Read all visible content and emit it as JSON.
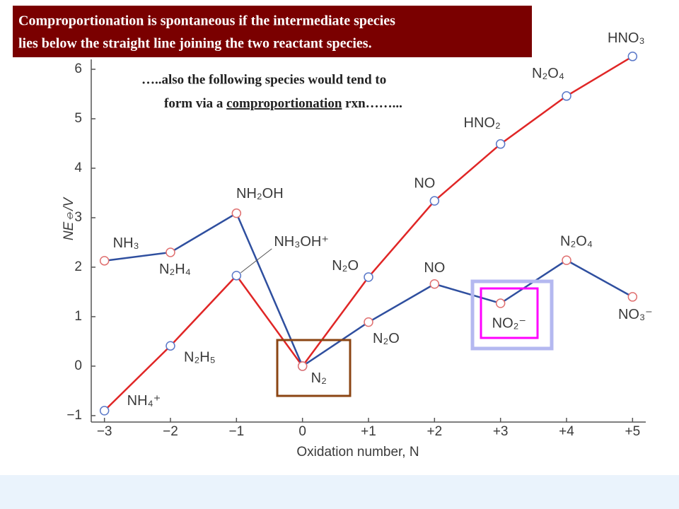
{
  "header": {
    "lines": [
      "Comproportionation is spontaneous if the intermediate species",
      "lies below the straight line joining the two reactant species."
    ]
  },
  "annotation": {
    "line1": "…..also the following species would tend to",
    "line2_before": "form via a ",
    "line2_emphasis": "comproportionation",
    "line2_after": " rxn……..."
  },
  "chart_data": {
    "type": "line",
    "x_label": "Oxidation number, N",
    "y_label": "NE⦵/V",
    "x": [
      -3,
      -2,
      -1,
      0,
      1,
      2,
      3,
      4,
      5
    ],
    "xlim": [
      -3.2,
      5.2
    ],
    "xticks": [
      {
        "value": -3,
        "label": "−3"
      },
      {
        "value": -2,
        "label": "−2"
      },
      {
        "value": -1,
        "label": "−1"
      },
      0,
      {
        "value": 1,
        "label": "+1"
      },
      {
        "value": 2,
        "label": "+2"
      },
      {
        "value": 3,
        "label": "+3"
      },
      {
        "value": 4,
        "label": "+4"
      },
      {
        "value": 5,
        "label": "+5"
      }
    ],
    "ylim": [
      -1.13,
      6.2
    ],
    "yticks": [
      {
        "value": -1,
        "label": "−1"
      },
      0,
      1,
      2,
      3,
      4,
      5,
      6
    ],
    "grid": false,
    "series": [
      {
        "color": "#e02626",
        "marker_edge": "#5a78c8",
        "values": [
          -0.9,
          0.41,
          1.83,
          0,
          1.8,
          3.34,
          4.49,
          5.46,
          6.26
        ],
        "point_labels": [
          "NH₄⁺",
          "N₂H₅",
          "NH₃OH⁺",
          null,
          "N₂O",
          "NO",
          "HNO₂",
          "N₂O₄",
          "HNO₃"
        ]
      },
      {
        "color": "#2f4f9f",
        "marker_edge": "#e07070",
        "values": [
          2.13,
          2.3,
          3.09,
          0,
          0.89,
          1.66,
          1.27,
          2.14,
          1.4
        ],
        "point_labels": [
          "NH₃",
          "N₂H₄",
          "NH₂OH",
          "N₂",
          "N₂O",
          "NO",
          "NO₂⁻",
          "N₂O₄",
          "NO₃⁻"
        ]
      }
    ]
  }
}
